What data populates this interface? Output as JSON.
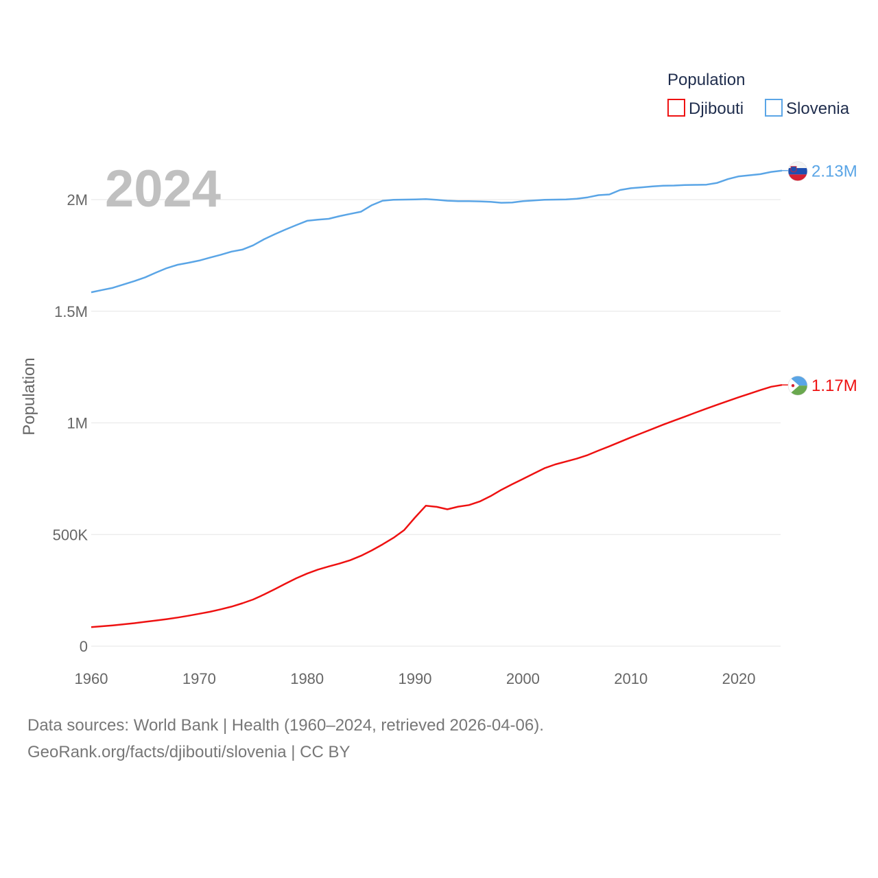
{
  "chart_data": {
    "type": "line",
    "title": "",
    "year_label": "2024",
    "xlabel": "",
    "ylabel": "Population",
    "xlim": [
      1960,
      2024
    ],
    "ylim": [
      0,
      2200000
    ],
    "x_ticks": [
      1960,
      1970,
      1980,
      1990,
      2000,
      2010,
      2020
    ],
    "x_tick_labels": [
      "1960",
      "1970",
      "1980",
      "1990",
      "2000",
      "2010",
      "2020"
    ],
    "y_ticks": [
      0,
      500000,
      1000000,
      1500000,
      2000000
    ],
    "y_tick_labels": [
      "0",
      "500K",
      "1M",
      "1.5M",
      "2M"
    ],
    "legend": {
      "title": "Population",
      "position": "top-right",
      "entries": [
        "Djibouti",
        "Slovenia"
      ]
    },
    "x": [
      1960,
      1961,
      1962,
      1963,
      1964,
      1965,
      1966,
      1967,
      1968,
      1969,
      1970,
      1971,
      1972,
      1973,
      1974,
      1975,
      1976,
      1977,
      1978,
      1979,
      1980,
      1981,
      1982,
      1983,
      1984,
      1985,
      1986,
      1987,
      1988,
      1989,
      1990,
      1991,
      1992,
      1993,
      1994,
      1995,
      1996,
      1997,
      1998,
      1999,
      2000,
      2001,
      2002,
      2003,
      2004,
      2005,
      2006,
      2007,
      2008,
      2009,
      2010,
      2011,
      2012,
      2013,
      2014,
      2015,
      2016,
      2017,
      2018,
      2019,
      2020,
      2021,
      2022,
      2023,
      2024
    ],
    "series": [
      {
        "name": "Djibouti",
        "color": "#ee1111",
        "end_label": "1.17M",
        "flag_icon": "djibouti-flag-icon",
        "values": [
          85000,
          89000,
          93000,
          98000,
          103000,
          109000,
          115000,
          121000,
          128000,
          136000,
          145000,
          154000,
          165000,
          177000,
          192000,
          209000,
          231000,
          255000,
          280000,
          304000,
          325000,
          343000,
          357000,
          370000,
          385000,
          405000,
          429000,
          456000,
          485000,
          520000,
          576000,
          629000,
          624000,
          613000,
          625000,
          632000,
          648000,
          672000,
          700000,
          725000,
          749000,
          773000,
          797000,
          814000,
          827000,
          840000,
          856000,
          876000,
          895000,
          915000,
          935000,
          954000,
          973000,
          992000,
          1010000,
          1028000,
          1046000,
          1064000,
          1081000,
          1098000,
          1115000,
          1131000,
          1147000,
          1162000,
          1170000
        ]
      },
      {
        "name": "Slovenia",
        "color": "#5aa5e6",
        "end_label": "2.13M",
        "flag_icon": "slovenia-flag-icon",
        "values": [
          1585000,
          1595000,
          1605000,
          1620000,
          1635000,
          1652000,
          1673000,
          1693000,
          1708000,
          1717000,
          1727000,
          1740000,
          1753000,
          1767000,
          1776000,
          1795000,
          1822000,
          1845000,
          1866000,
          1886000,
          1905000,
          1910000,
          1914000,
          1926000,
          1936000,
          1946000,
          1975000,
          1995000,
          1999000,
          2000000,
          2001000,
          2002000,
          1999000,
          1995000,
          1993000,
          1993000,
          1992000,
          1990000,
          1986000,
          1987000,
          1993000,
          1996000,
          1999000,
          2000000,
          2001000,
          2004000,
          2010000,
          2020000,
          2023000,
          2043000,
          2051000,
          2055000,
          2059000,
          2062000,
          2063000,
          2065000,
          2066000,
          2067000,
          2075000,
          2092000,
          2104000,
          2109000,
          2114000,
          2124000,
          2130000
        ]
      }
    ]
  },
  "footer": {
    "sources": "Data sources: World Bank | Health (1960–2024, retrieved 2026-04-06).",
    "link": "GeoRank.org/facts/djibouti/slovenia | CC BY"
  }
}
